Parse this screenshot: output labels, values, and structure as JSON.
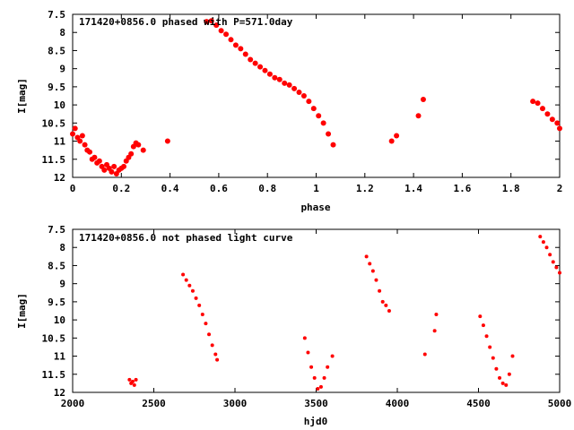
{
  "chart_data": [
    {
      "type": "scatter",
      "title": "171420+0856.0 phased with P=571.0day",
      "xlabel": "phase",
      "ylabel": "I[mag]",
      "xlim": [
        0,
        2
      ],
      "ylim": [
        7.5,
        12
      ],
      "y_inverted": true,
      "grid": false,
      "x_ticks": [
        "0",
        "0.2",
        "0.4",
        "0.6",
        "0.8",
        "1",
        "1.2",
        "1.4",
        "1.6",
        "1.8",
        "2"
      ],
      "y_ticks": [
        "7.5",
        "8",
        "8.5",
        "9",
        "9.5",
        "10",
        "10.5",
        "11",
        "11.5",
        "12"
      ],
      "marker_color": "#ff0000",
      "series": [
        {
          "x": [
            0.0,
            0.01,
            0.02,
            0.03,
            0.04,
            0.05,
            0.06,
            0.07,
            0.08,
            0.09,
            0.1,
            0.11,
            0.12,
            0.13,
            0.14,
            0.15,
            0.16,
            0.17,
            0.18,
            0.19,
            0.2,
            0.21,
            0.22,
            0.23,
            0.24,
            0.25,
            0.26,
            0.27,
            0.29,
            0.39,
            0.55,
            0.57,
            0.59,
            0.61,
            0.63,
            0.65,
            0.67,
            0.69,
            0.71,
            0.73,
            0.75,
            0.77,
            0.79,
            0.81,
            0.83,
            0.85,
            0.87,
            0.89,
            0.91,
            0.93,
            0.95,
            0.97,
            0.99,
            1.01,
            1.03,
            1.05,
            1.07,
            1.31,
            1.33,
            1.42,
            1.44,
            1.89,
            1.91,
            1.93,
            1.95,
            1.97,
            1.99,
            2.0
          ],
          "y": [
            10.8,
            10.65,
            10.9,
            11.0,
            10.85,
            11.1,
            11.25,
            11.3,
            11.5,
            11.45,
            11.6,
            11.55,
            11.7,
            11.8,
            11.65,
            11.75,
            11.85,
            11.7,
            11.9,
            11.8,
            11.75,
            11.7,
            11.55,
            11.45,
            11.35,
            11.15,
            11.05,
            11.1,
            11.25,
            11.0,
            7.7,
            7.68,
            7.8,
            7.95,
            8.05,
            8.2,
            8.35,
            8.45,
            8.6,
            8.75,
            8.85,
            8.95,
            9.05,
            9.15,
            9.25,
            9.3,
            9.4,
            9.45,
            9.55,
            9.65,
            9.75,
            9.9,
            10.1,
            10.3,
            10.5,
            10.8,
            11.1,
            11.0,
            10.85,
            10.3,
            9.85,
            9.9,
            9.95,
            10.1,
            10.25,
            10.4,
            10.5,
            10.65
          ]
        }
      ]
    },
    {
      "type": "scatter",
      "title": "171420+0856.0 not phased light curve",
      "xlabel": "hjd0",
      "ylabel": "I[mag]",
      "xlim": [
        2000,
        5000
      ],
      "ylim": [
        7.5,
        12
      ],
      "y_inverted": true,
      "grid": false,
      "x_ticks": [
        "2000",
        "2500",
        "3000",
        "3500",
        "4000",
        "4500",
        "5000"
      ],
      "y_ticks": [
        "7.5",
        "8",
        "8.5",
        "9",
        "9.5",
        "10",
        "10.5",
        "11",
        "11.5",
        "12"
      ],
      "marker_color": "#ff0000",
      "series": [
        {
          "x": [
            2350,
            2360,
            2370,
            2380,
            2390,
            2680,
            2700,
            2720,
            2740,
            2760,
            2780,
            2800,
            2820,
            2840,
            2860,
            2880,
            2890,
            3430,
            3450,
            3470,
            3490,
            3510,
            3530,
            3550,
            3570,
            3600,
            3810,
            3830,
            3850,
            3870,
            3890,
            3910,
            3930,
            3950,
            4170,
            4230,
            4240,
            4510,
            4530,
            4550,
            4570,
            4590,
            4610,
            4630,
            4650,
            4670,
            4690,
            4710,
            4880,
            4900,
            4920,
            4940,
            4960,
            4980,
            5000
          ],
          "y": [
            11.65,
            11.75,
            11.7,
            11.8,
            11.65,
            8.75,
            8.9,
            9.05,
            9.2,
            9.4,
            9.6,
            9.85,
            10.1,
            10.4,
            10.7,
            10.95,
            11.1,
            10.5,
            10.9,
            11.3,
            11.6,
            11.9,
            11.85,
            11.6,
            11.3,
            11.0,
            8.25,
            8.45,
            8.65,
            8.9,
            9.2,
            9.5,
            9.6,
            9.75,
            10.95,
            10.3,
            9.85,
            9.9,
            10.15,
            10.45,
            10.75,
            11.05,
            11.35,
            11.6,
            11.75,
            11.8,
            11.5,
            11.0,
            7.7,
            7.85,
            8.0,
            8.2,
            8.4,
            8.55,
            8.7
          ]
        }
      ]
    }
  ]
}
